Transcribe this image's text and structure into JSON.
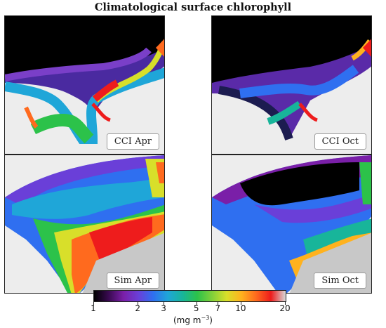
{
  "chart_data": {
    "type": "heatmap",
    "title": "Climatological surface chlorophyll",
    "colorbar": {
      "label": "(mg m",
      "label_exponent": "−3",
      "label_suffix": ")",
      "scale": "log",
      "range": [
        1,
        20
      ],
      "ticks": [
        1,
        2,
        3,
        5,
        7,
        10,
        20
      ],
      "tick_labels": [
        "1",
        "2",
        "3",
        "5",
        "7",
        "10",
        "20"
      ],
      "colormap": [
        "#000000",
        "#3a0a52",
        "#7a1fa8",
        "#6a3fd8",
        "#2f6ff0",
        "#1fa6d8",
        "#18b59a",
        "#2cc24a",
        "#7fd03a",
        "#d8df2a",
        "#ffb21e",
        "#ff6a1e",
        "#ee1c1c",
        "#d8d8d8"
      ]
    },
    "panels": [
      {
        "label": "CCI Apr"
      },
      {
        "label": "CCI Oct"
      },
      {
        "label": "Sim Apr"
      },
      {
        "label": "Sim Oct"
      }
    ]
  }
}
